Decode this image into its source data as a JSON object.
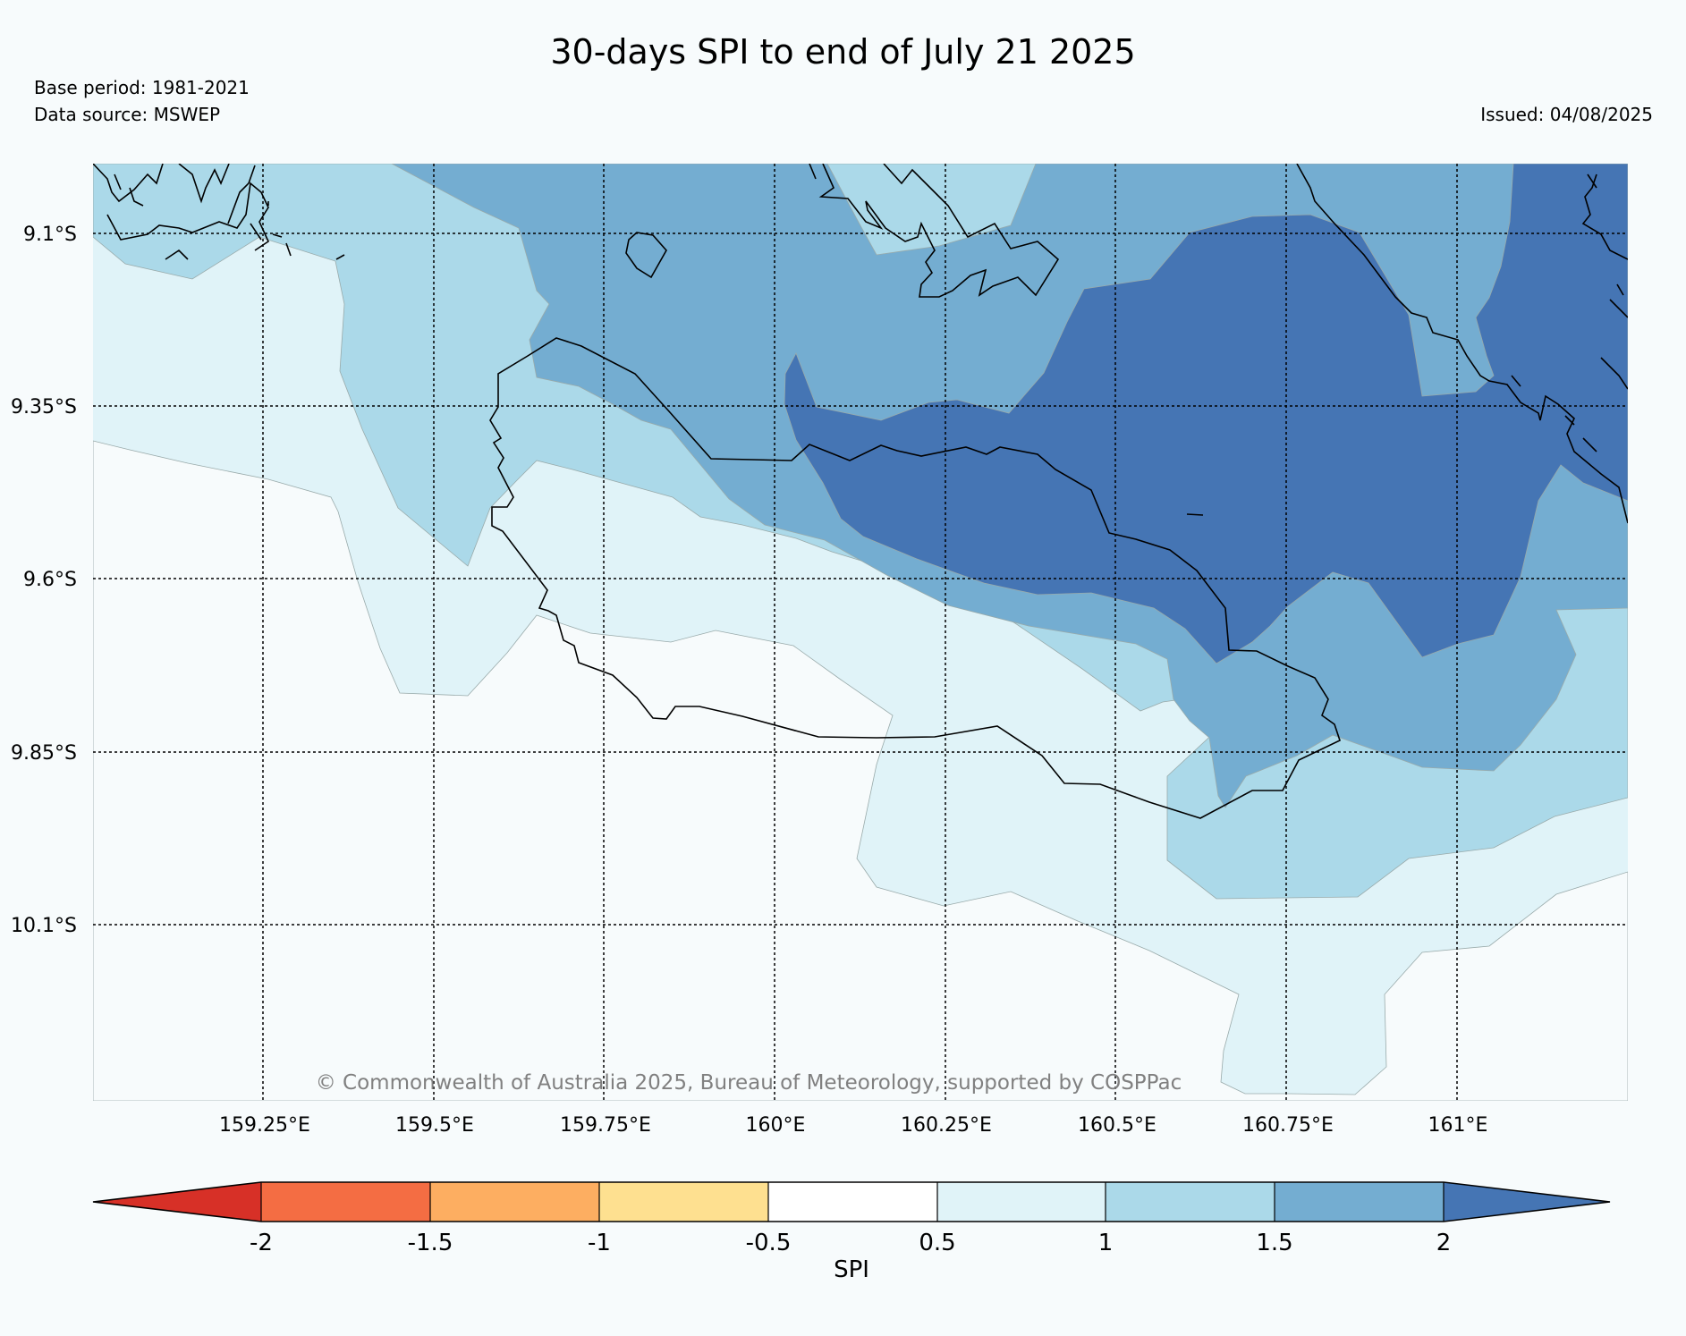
{
  "header": {
    "title": "30-days SPI to end of July 21 2025",
    "base_period": "Base period: 1981-2021",
    "data_source": "Data source: MSWEP",
    "issued": "Issued: 04/08/2025"
  },
  "map": {
    "extent": {
      "lon": [
        159.0,
        161.25
      ],
      "lat": [
        -9.0,
        -10.35
      ]
    },
    "lat_ticks": [
      {
        "value": -9.1,
        "label": "9.1°S"
      },
      {
        "value": -9.35,
        "label": "9.35°S"
      },
      {
        "value": -9.6,
        "label": "9.6°S"
      },
      {
        "value": -9.85,
        "label": "9.85°S"
      },
      {
        "value": -10.1,
        "label": "10.1°S"
      }
    ],
    "lon_ticks": [
      {
        "value": 159.25,
        "label": "159.25°E"
      },
      {
        "value": 159.5,
        "label": "159.5°E"
      },
      {
        "value": 159.75,
        "label": "159.75°E"
      },
      {
        "value": 160.0,
        "label": "160°E"
      },
      {
        "value": 160.25,
        "label": "160.25°E"
      },
      {
        "value": 160.5,
        "label": "160.5°E"
      },
      {
        "value": 160.75,
        "label": "160.75°E"
      },
      {
        "value": 161.0,
        "label": "161°E"
      }
    ],
    "copyright": "© Commonwealth of Australia 2025, Bureau of Meteorology, supported by COSPPac",
    "colors": {
      "background": "#f7fbfc",
      "spi_0_5_to_1": "#e0f3f8",
      "spi_1_to_1_5": "#abd9e9",
      "spi_1_5_to_2": "#74add1",
      "spi_above_2": "#4575b4",
      "coastline": "#000000"
    },
    "grid": true
  },
  "colorbar": {
    "label": "SPI",
    "ticks": [
      "-2",
      "-1.5",
      "-1",
      "-0.5",
      "0.5",
      "1",
      "1.5",
      "2"
    ],
    "colors": [
      "#d73027",
      "#f46d43",
      "#fdae61",
      "#fee090",
      "#ffffff",
      "#e0f3f8",
      "#abd9e9",
      "#74add1",
      "#4575b4"
    ]
  }
}
